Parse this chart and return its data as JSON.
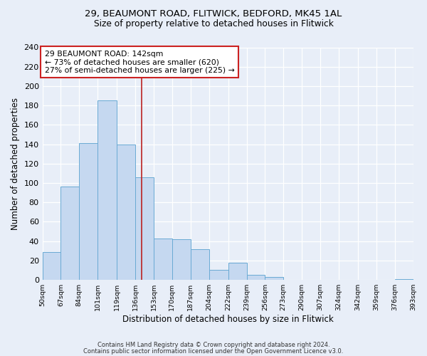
{
  "title1": "29, BEAUMONT ROAD, FLITWICK, BEDFORD, MK45 1AL",
  "title2": "Size of property relative to detached houses in Flitwick",
  "xlabel": "Distribution of detached houses by size in Flitwick",
  "ylabel": "Number of detached properties",
  "bar_edges": [
    50,
    67,
    84,
    101,
    119,
    136,
    153,
    170,
    187,
    204,
    222,
    239,
    256,
    273,
    290,
    307,
    324,
    342,
    359,
    376,
    393
  ],
  "bar_heights": [
    29,
    96,
    141,
    185,
    140,
    106,
    43,
    42,
    32,
    10,
    18,
    5,
    3,
    0,
    0,
    0,
    0,
    0,
    0,
    1
  ],
  "tick_labels": [
    "50sqm",
    "67sqm",
    "84sqm",
    "101sqm",
    "119sqm",
    "136sqm",
    "153sqm",
    "170sqm",
    "187sqm",
    "204sqm",
    "222sqm",
    "239sqm",
    "256sqm",
    "273sqm",
    "290sqm",
    "307sqm",
    "324sqm",
    "342sqm",
    "359sqm",
    "376sqm",
    "393sqm"
  ],
  "bar_color": "#c5d8f0",
  "bar_edge_color": "#6aaad4",
  "vline_x": 142,
  "vline_color": "#bb2222",
  "annotation_title": "29 BEAUMONT ROAD: 142sqm",
  "annotation_line1": "← 73% of detached houses are smaller (620)",
  "annotation_line2": "27% of semi-detached houses are larger (225) →",
  "annotation_box_color": "#ffffff",
  "annotation_box_edge": "#cc2222",
  "ylim": [
    0,
    240
  ],
  "yticks": [
    0,
    20,
    40,
    60,
    80,
    100,
    120,
    140,
    160,
    180,
    200,
    220,
    240
  ],
  "footer1": "Contains HM Land Registry data © Crown copyright and database right 2024.",
  "footer2": "Contains public sector information licensed under the Open Government Licence v3.0.",
  "bg_color": "#e8eef8",
  "plot_bg": "#e8eef8",
  "grid_color": "#ffffff"
}
